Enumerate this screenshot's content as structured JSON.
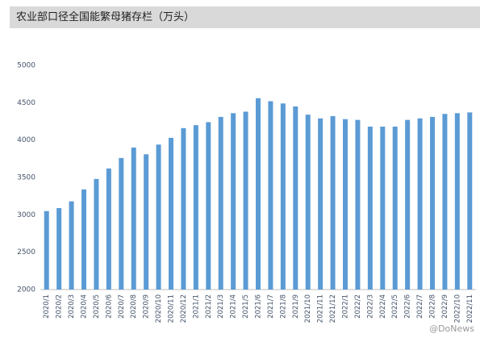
{
  "chart_data": {
    "type": "bar",
    "title": "农业部口径全国能繁母猪存栏（万头）",
    "categories": [
      "2020/1",
      "2020/2",
      "2020/3",
      "2020/4",
      "2020/5",
      "2020/6",
      "2020/7",
      "2020/8",
      "2020/9",
      "2020/10",
      "2020/11",
      "2020/12",
      "2021/1",
      "2021/2",
      "2021/3",
      "2021/4",
      "2021/5",
      "2021/6",
      "2021/7",
      "2021/8",
      "2021/9",
      "2021/10",
      "2021/11",
      "2021/12",
      "2022/1",
      "2022/2",
      "2022/3",
      "2022/4",
      "2022/5",
      "2022/6",
      "2022/7",
      "2022/8",
      "2022/9",
      "2022/10",
      "2022/11"
    ],
    "values": [
      3050,
      3090,
      3180,
      3340,
      3480,
      3620,
      3760,
      3900,
      3810,
      3940,
      4030,
      4160,
      4200,
      4240,
      4310,
      4360,
      4380,
      4560,
      4520,
      4490,
      4450,
      4340,
      4290,
      4320,
      4280,
      4270,
      4180,
      4180,
      4180,
      4270,
      4290,
      4310,
      4350,
      4360,
      4370
    ],
    "color": "#5b9bd5",
    "ylim": [
      2000,
      5000
    ],
    "yticks": [
      2000,
      2500,
      3000,
      3500,
      4000,
      4500,
      5000
    ],
    "grid": false,
    "watermark": "@DoNews"
  }
}
